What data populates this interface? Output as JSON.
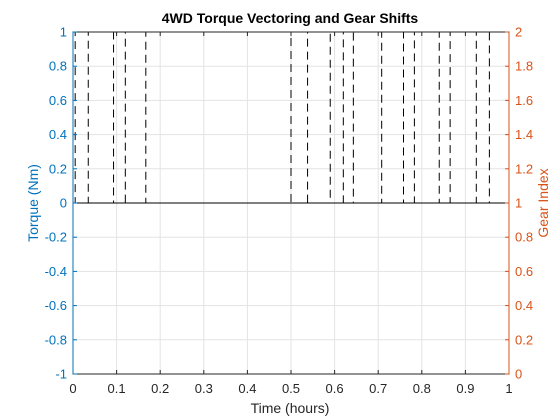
{
  "chart_data": {
    "type": "line",
    "title": "4WD Torque Vectoring and Gear Shifts",
    "xlabel": "Time (hours)",
    "ylabel_left": "Torque (Nm)",
    "ylabel_right": "Gear Index",
    "xlim": [
      0,
      1
    ],
    "ylim_left": [
      -1,
      1
    ],
    "ylim_right": [
      0,
      2
    ],
    "xticks": [
      0,
      0.1,
      0.2,
      0.3,
      0.4,
      0.5,
      0.6,
      0.7,
      0.8,
      0.9,
      1
    ],
    "xtick_labels": [
      "0",
      "0.1",
      "0.2",
      "0.3",
      "0.4",
      "0.5",
      "0.6",
      "0.7",
      "0.8",
      "0.9",
      "1"
    ],
    "yticks_left": [
      -1,
      -0.8,
      -0.6,
      -0.4,
      -0.2,
      0,
      0.2,
      0.4,
      0.6,
      0.8,
      1
    ],
    "ytick_labels_left": [
      "-1",
      "-0.8",
      "-0.6",
      "-0.4",
      "-0.2",
      "0",
      "0.2",
      "0.4",
      "0.6",
      "0.8",
      "1"
    ],
    "yticks_right": [
      0,
      0.2,
      0.4,
      0.6,
      0.8,
      1,
      1.2,
      1.4,
      1.6,
      1.8,
      2
    ],
    "ytick_labels_right": [
      "0",
      "0.2",
      "0.4",
      "0.6",
      "0.8",
      "1",
      "1.2",
      "1.4",
      "1.6",
      "1.8",
      "2"
    ],
    "grid": true,
    "colors": {
      "left_axis": "#0072BD",
      "right_axis": "#D95319",
      "grid": "#E3E3E3",
      "series": "#000000"
    },
    "series": [
      {
        "axis": "right",
        "style": "dashed",
        "x": [
          0,
          0.005,
          0.005,
          0.035,
          0.035,
          0.093,
          0.093,
          0.12,
          0.12,
          0.167,
          0.167,
          0.5,
          0.5,
          0.538,
          0.538,
          0.59,
          0.59,
          0.62,
          0.62,
          0.643,
          0.643,
          0.708,
          0.708,
          0.758,
          0.758,
          0.783,
          0.783,
          0.84,
          0.84,
          0.865,
          0.865,
          0.925,
          0.925,
          0.955,
          0.955,
          1
        ],
        "y": [
          1,
          1,
          2,
          2,
          1,
          1,
          2,
          2,
          1,
          1,
          2,
          2,
          1,
          1,
          2,
          2,
          1,
          1,
          2,
          2,
          1,
          1,
          2,
          2,
          1,
          1,
          2,
          2,
          1,
          1,
          2,
          2,
          1,
          1,
          2,
          2
        ]
      },
      {
        "axis": "left",
        "style": "solid",
        "x": [
          0,
          1
        ],
        "y": [
          0,
          0
        ]
      }
    ]
  }
}
